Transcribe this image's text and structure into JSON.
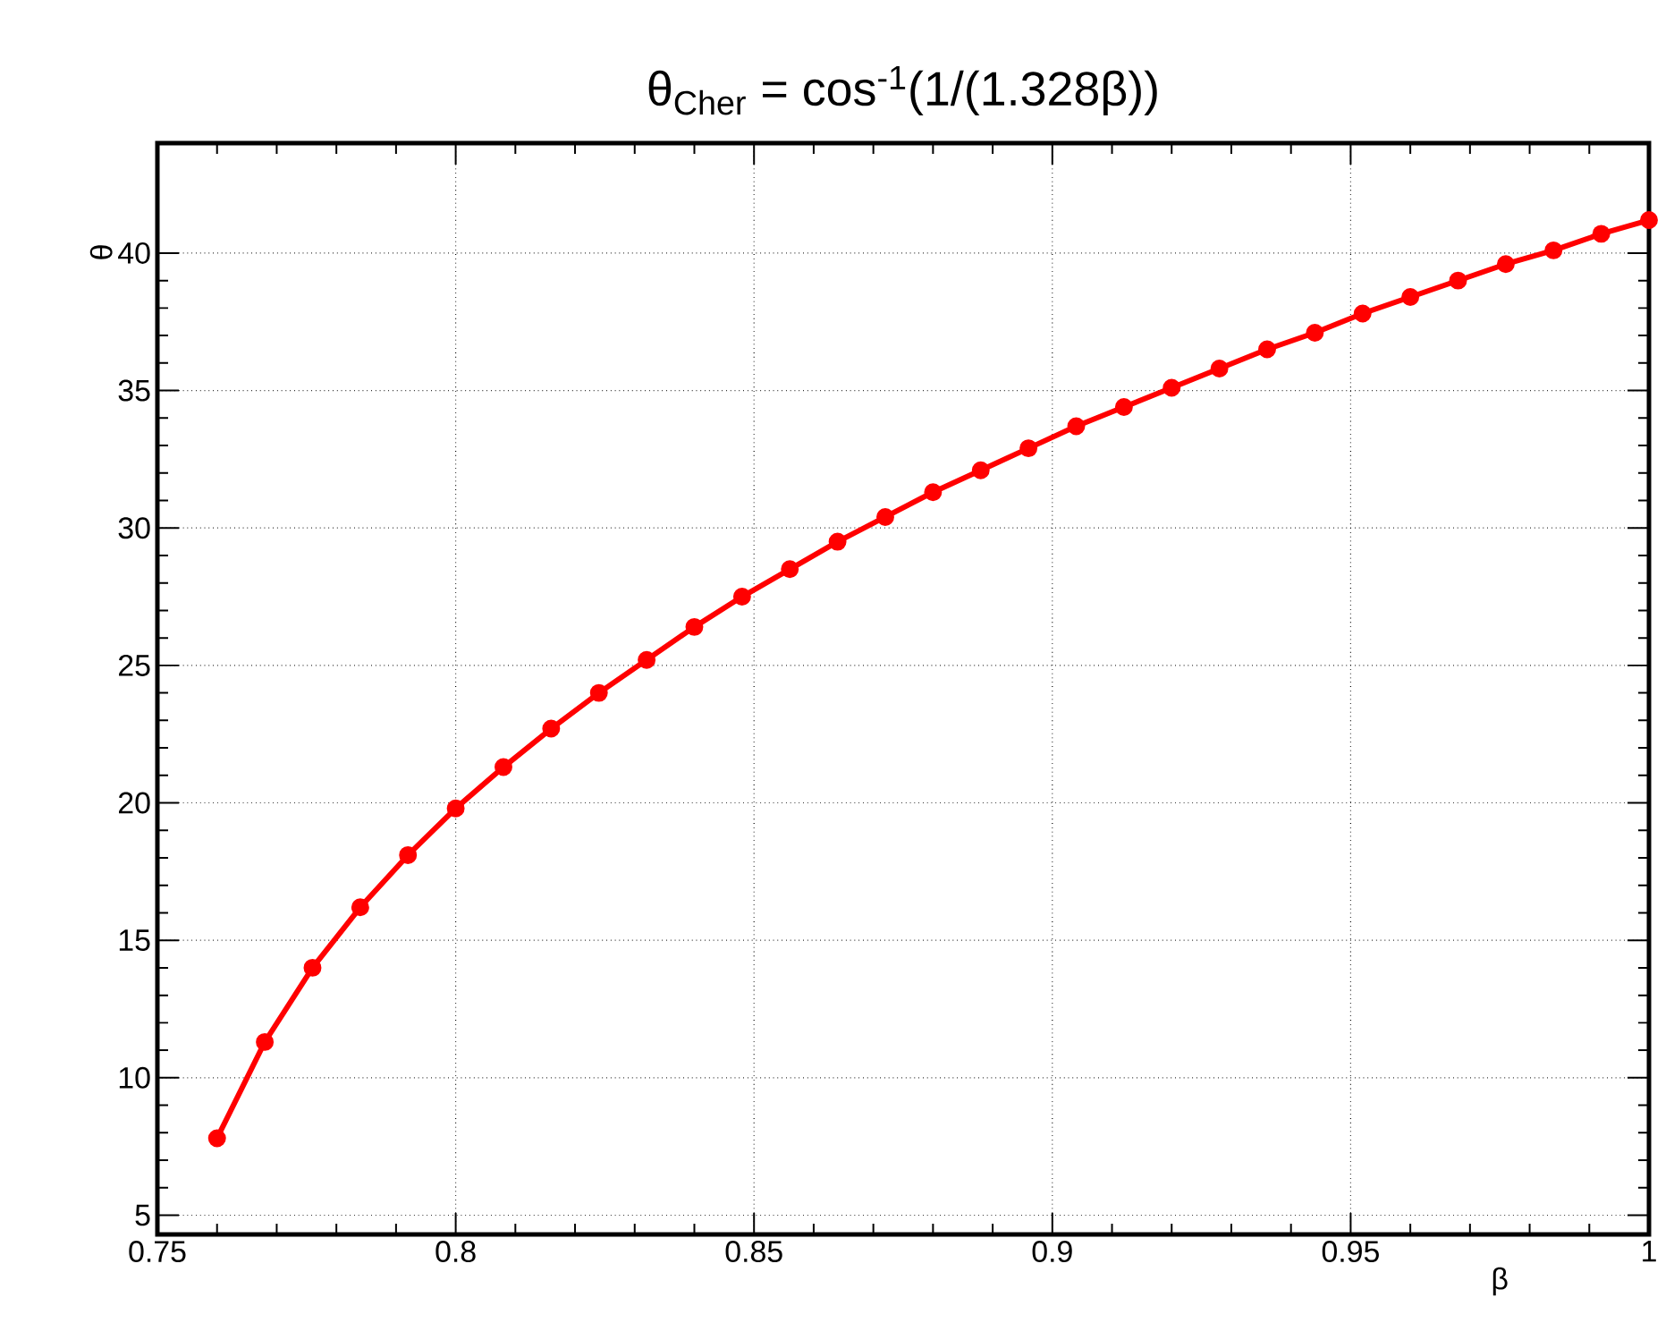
{
  "chart_data": {
    "type": "line",
    "title": "θ$_{Cher}$ = cos$^{-1}$(1/(1.328β))",
    "xlabel": "β",
    "ylabel": "θ",
    "x": [
      0.76,
      0.768,
      0.776,
      0.784,
      0.792,
      0.8,
      0.808,
      0.816,
      0.824,
      0.832,
      0.84,
      0.848,
      0.856,
      0.864,
      0.872,
      0.88,
      0.888,
      0.896,
      0.904,
      0.912,
      0.92,
      0.928,
      0.936,
      0.944,
      0.952,
      0.96,
      0.968,
      0.976,
      0.984,
      0.992,
      1.0
    ],
    "values": [
      7.8,
      11.3,
      14.0,
      16.2,
      18.1,
      19.8,
      21.3,
      22.7,
      24.0,
      25.2,
      26.4,
      27.5,
      28.5,
      29.5,
      30.4,
      31.3,
      32.1,
      32.9,
      33.7,
      34.4,
      35.1,
      35.8,
      36.5,
      37.1,
      37.8,
      38.4,
      39.0,
      39.6,
      40.1,
      40.7,
      41.2
    ],
    "color": "#ff0000",
    "marker": "circle",
    "line_style": "solid",
    "grid": true,
    "xlim": [
      0.75,
      1.0
    ],
    "ylim": [
      4.3,
      44
    ],
    "xticks": [
      0.75,
      0.8,
      0.85,
      0.9,
      0.95,
      1
    ],
    "yticks": [
      5,
      10,
      15,
      20,
      25,
      30,
      35,
      40
    ]
  }
}
